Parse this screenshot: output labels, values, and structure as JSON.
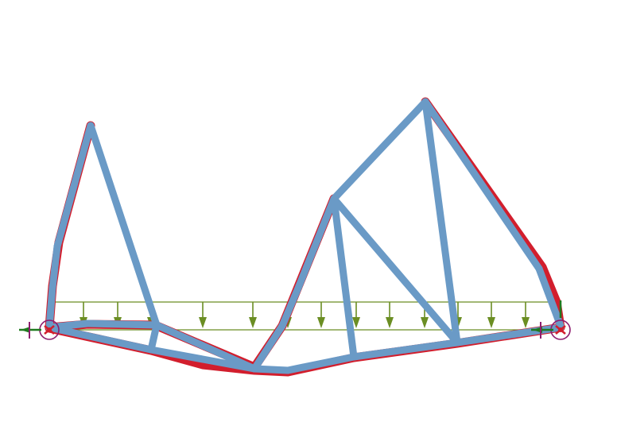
{
  "colors": {
    "background": "#ffffff",
    "member": "#6a9ac6",
    "deformed": "#d21e2d",
    "load": "#6b8e23",
    "support": "#8e1c6e",
    "reaction": "#1f7a1f"
  },
  "diagram": {
    "type": "structural-truss-model",
    "load_type": "uniformly distributed load",
    "supports": 2,
    "labels": []
  }
}
